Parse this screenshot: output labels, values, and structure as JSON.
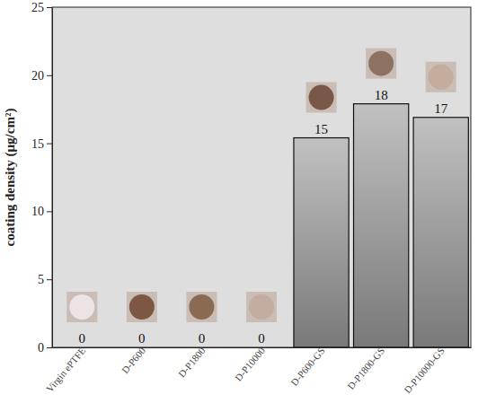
{
  "chart_data": {
    "type": "bar",
    "y_label": "coating density (μg/cm²)",
    "categories": [
      "Virgin ePTFE",
      "D-P600",
      "D-P1800",
      "D-P10000",
      "D-P600-GS",
      "D-P1800-GS",
      "D-P10000-GS"
    ],
    "values": [
      0,
      0,
      0,
      0,
      15.4,
      17.9,
      16.9
    ],
    "value_labels": [
      "0",
      "0",
      "0",
      "0",
      "15",
      "18",
      "17"
    ],
    "data_labels": true,
    "color": "#8c8c8c",
    "ylim": [
      0,
      25
    ],
    "yticks": [
      0,
      5,
      10,
      15,
      20,
      25
    ],
    "grid": false
  }
}
